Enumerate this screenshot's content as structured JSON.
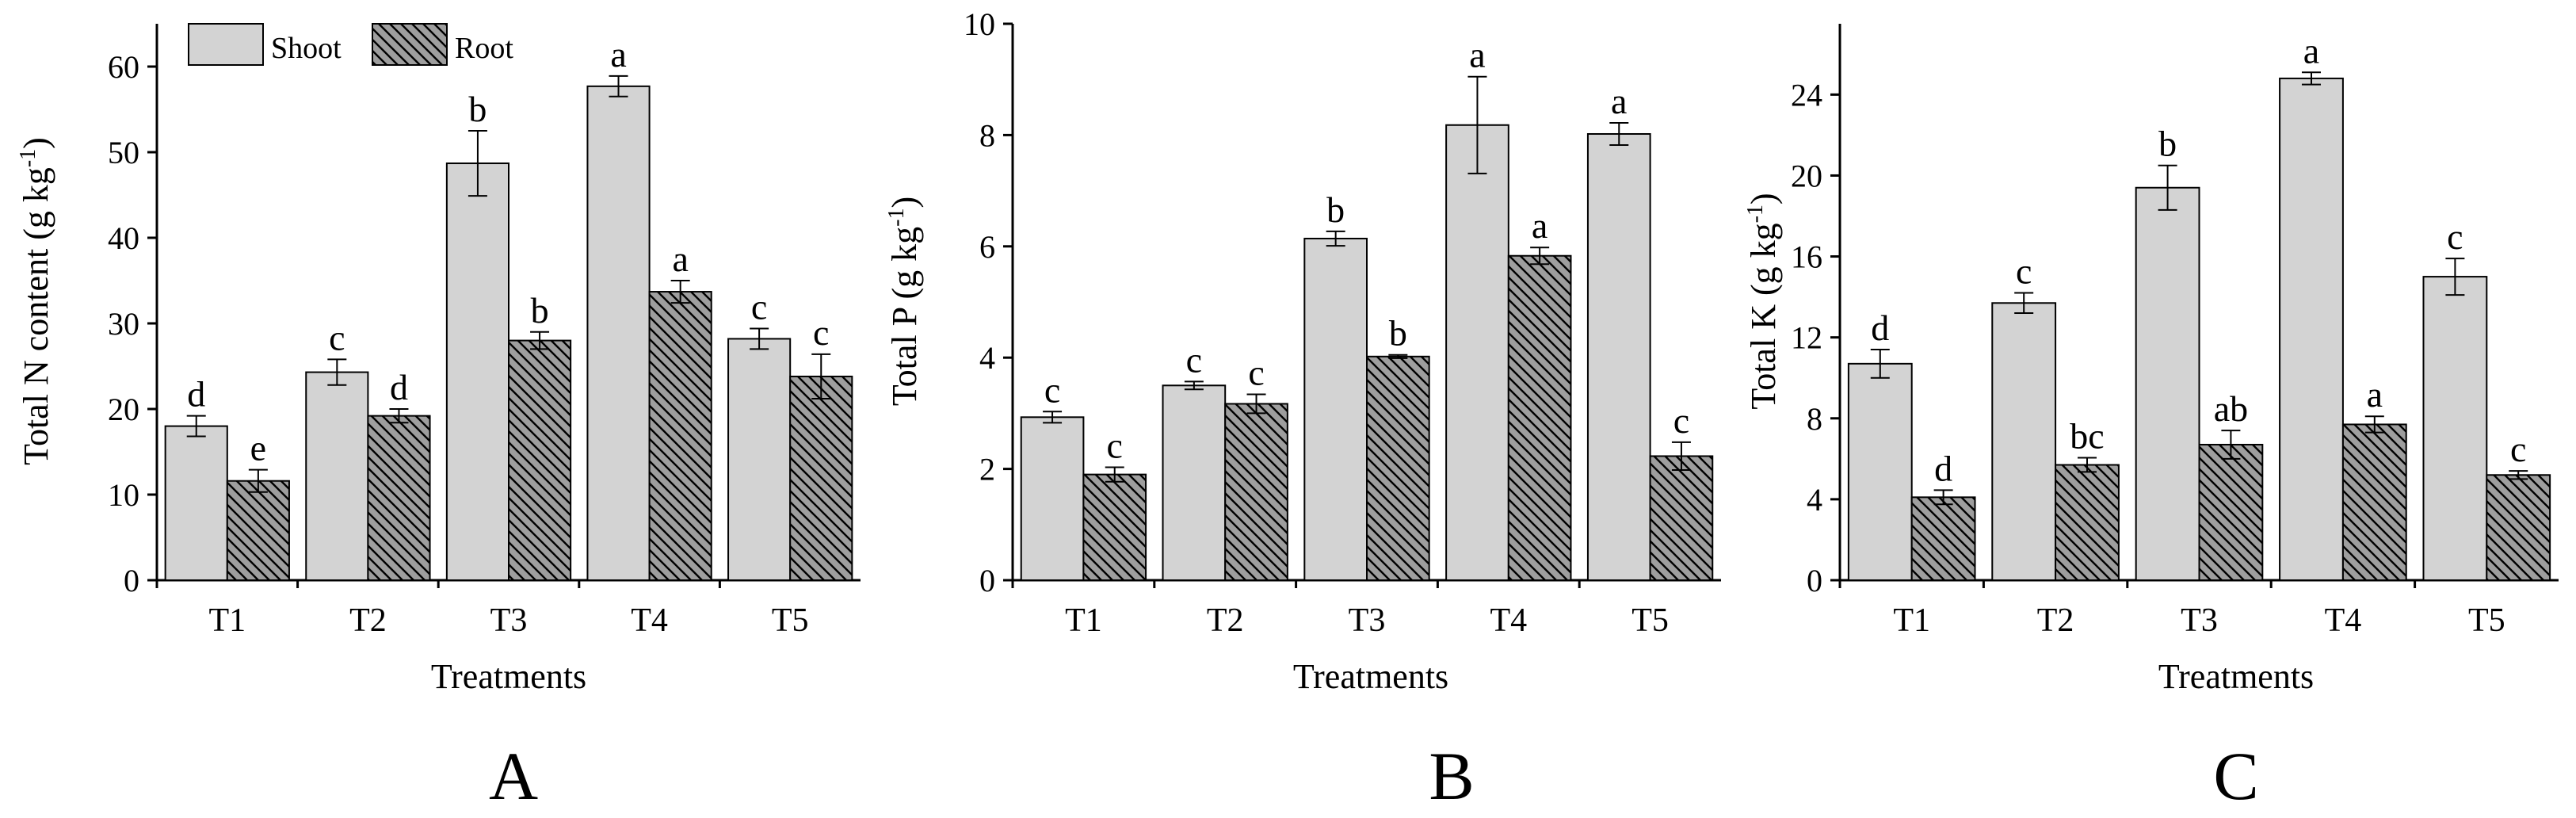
{
  "colors": {
    "shoot_fill": "#d3d3d3",
    "root_fill": "#9e9e9e",
    "stroke": "#000000"
  },
  "legend": {
    "shoot_label": "Shoot",
    "root_label": "Root"
  },
  "chart_data": [
    {
      "type": "bar",
      "panel_label": "A",
      "xlabel": "Treatments",
      "ylabel": "Total N content (g kg",
      "ylabel_sup": "-1",
      "ylabel_tail": ")",
      "categories": [
        "T1",
        "T2",
        "T3",
        "T4",
        "T5"
      ],
      "ylim": [
        0,
        65
      ],
      "yticks": [
        0,
        10,
        20,
        30,
        40,
        50,
        60
      ],
      "series": [
        {
          "name": "Shoot",
          "values": [
            18,
            24.3,
            48.7,
            57.7,
            28.2
          ],
          "errors": [
            1.2,
            1.5,
            3.8,
            1.2,
            1.2
          ],
          "letters": [
            "d",
            "c",
            "b",
            "a",
            "c"
          ]
        },
        {
          "name": "Root",
          "values": [
            11.6,
            19.2,
            28,
            33.7,
            23.8
          ],
          "errors": [
            1.3,
            0.8,
            1,
            1.3,
            2.6
          ],
          "letters": [
            "e",
            "d",
            "b",
            "a",
            "c"
          ]
        }
      ]
    },
    {
      "type": "bar",
      "panel_label": "B",
      "xlabel": "Treatments",
      "ylabel": "Total P (g kg",
      "ylabel_sup": "-1",
      "ylabel_tail": ")",
      "categories": [
        "T1",
        "T2",
        "T3",
        "T4",
        "T5"
      ],
      "ylim": [
        0,
        10
      ],
      "yticks": [
        0,
        2,
        4,
        6,
        8,
        10
      ],
      "series": [
        {
          "name": "Shoot",
          "values": [
            2.93,
            3.5,
            6.14,
            8.18,
            8.02
          ],
          "errors": [
            0.1,
            0.07,
            0.13,
            0.87,
            0.2
          ],
          "letters": [
            "c",
            "c",
            "b",
            "a",
            "a"
          ]
        },
        {
          "name": "Root",
          "values": [
            1.9,
            3.17,
            4.02,
            5.83,
            2.23
          ],
          "errors": [
            0.13,
            0.17,
            0.03,
            0.15,
            0.25
          ],
          "letters": [
            "c",
            "c",
            "b",
            "a",
            "c"
          ]
        }
      ]
    },
    {
      "type": "bar",
      "panel_label": "C",
      "xlabel": "Treatments",
      "ylabel": "Total K (g kg",
      "ylabel_sup": "-1",
      "ylabel_tail": ")",
      "categories": [
        "T1",
        "T2",
        "T3",
        "T4",
        "T5"
      ],
      "ylim": [
        0,
        27.5
      ],
      "yticks": [
        0,
        4,
        8,
        12,
        16,
        20,
        24
      ],
      "series": [
        {
          "name": "Shoot",
          "values": [
            10.7,
            13.7,
            19.4,
            24.8,
            15
          ],
          "errors": [
            0.7,
            0.5,
            1.1,
            0.3,
            0.9
          ],
          "letters": [
            "d",
            "c",
            "b",
            "a",
            "c"
          ]
        },
        {
          "name": "Root",
          "values": [
            4.1,
            5.7,
            6.7,
            7.7,
            5.2
          ],
          "errors": [
            0.35,
            0.35,
            0.7,
            0.4,
            0.2
          ],
          "letters": [
            "d",
            "bc",
            "ab",
            "a",
            "c"
          ]
        }
      ]
    }
  ]
}
